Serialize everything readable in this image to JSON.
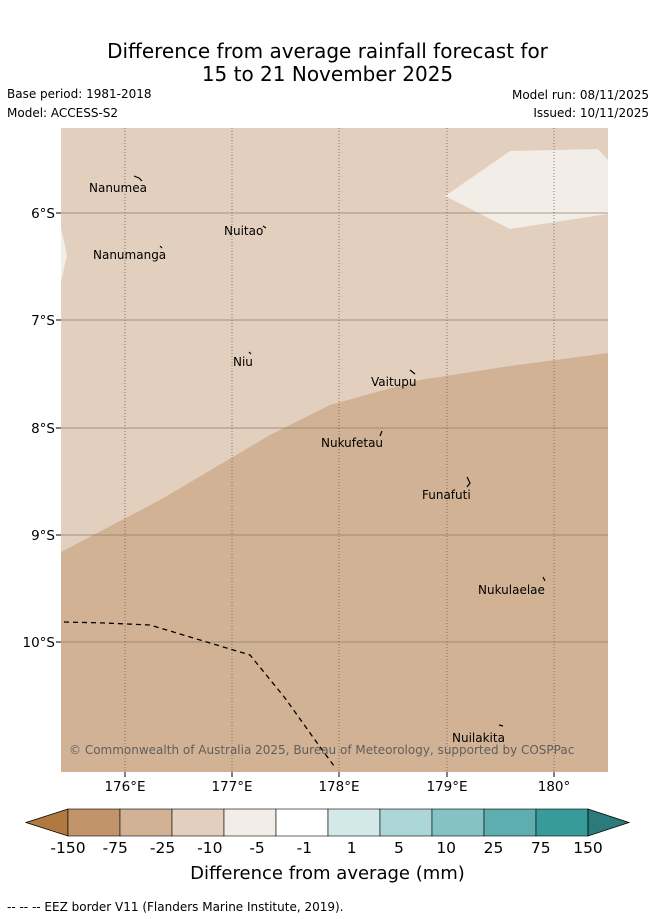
{
  "title": {
    "line1": "Difference from average rainfall forecast for",
    "line2": "15 to 21 November 2025"
  },
  "meta": {
    "base_period": "Base period: 1981-2018",
    "model": "Model: ACCESS-S2",
    "model_run": "Model run: 08/11/2025",
    "issued": "Issued: 10/11/2025"
  },
  "map": {
    "lat_ticks": [
      "6°S",
      "7°S",
      "8°S",
      "9°S",
      "10°S"
    ],
    "lon_ticks": [
      "176°E",
      "177°E",
      "178°E",
      "179°E",
      "180°"
    ],
    "islands": [
      {
        "name": "Nanumea"
      },
      {
        "name": "Nuitao"
      },
      {
        "name": "Nanumanga"
      },
      {
        "name": "Niu"
      },
      {
        "name": "Vaitupu"
      },
      {
        "name": "Nukufetau"
      },
      {
        "name": "Funafuti"
      },
      {
        "name": "Nukulaelae"
      },
      {
        "name": "Nuilakita"
      }
    ],
    "copyright": "© Commonwealth of Australia 2025, Bureau of Meteorology, supported by COSPPac",
    "fill_colors": {
      "dry_-25_to_-10": "#d2b294",
      "dry_-10_to_-5": "#e2cfbd",
      "near_-5_to_-1": "#f2ede7"
    }
  },
  "colorbar": {
    "title": "Difference from average (mm)",
    "tick_labels": [
      "-150",
      "-75",
      "-25",
      "-10",
      "-5",
      "-1",
      "1",
      "5",
      "10",
      "25",
      "75",
      "150"
    ],
    "colors": [
      "#b07942",
      "#c29469",
      "#d2b294",
      "#e2cfbd",
      "#f2ede7",
      "#ffffff",
      "#d3e9e9",
      "#acd6d7",
      "#85c2c3",
      "#5eaeaf",
      "#379b9c",
      "#2b7b7c"
    ]
  },
  "footnote": "--  --  -- EEZ border V11 (Flanders Marine Institute, 2019)."
}
